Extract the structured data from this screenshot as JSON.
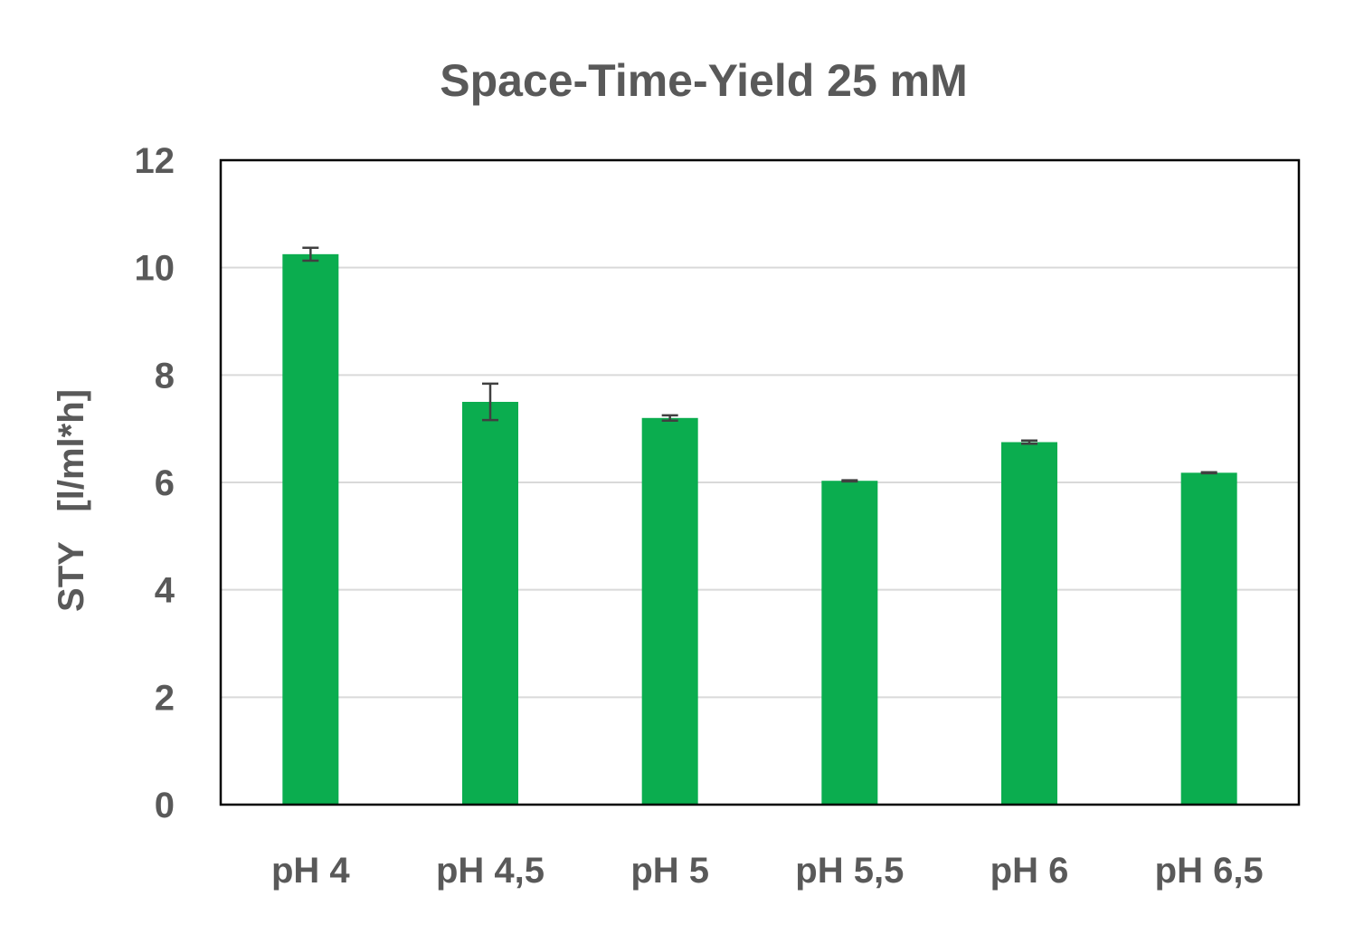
{
  "chart_data": {
    "type": "bar",
    "title": "Space-Time-Yield 25 mM",
    "xlabel": "",
    "ylabel": "STY   [l/ml*h]",
    "categories": [
      "pH 4",
      "pH 4,5",
      "pH 5",
      "pH 5,5",
      "pH 6",
      "pH 6,5"
    ],
    "values": [
      10.25,
      7.5,
      7.2,
      6.03,
      6.75,
      6.18
    ],
    "errors": [
      0.12,
      0.34,
      0.05,
      0.01,
      0.03,
      0.01
    ],
    "ylim": [
      0,
      12
    ],
    "yticks": [
      "0",
      "2",
      "4",
      "6",
      "8",
      "10",
      "12"
    ],
    "grid": true,
    "colors": {
      "bar": "#0bad4f",
      "error_bar": "#404040",
      "text": "#595959"
    }
  }
}
